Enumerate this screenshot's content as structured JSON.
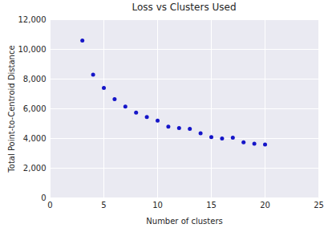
{
  "chart_data": {
    "type": "scatter",
    "title": "Loss vs Clusters Used",
    "x_label": "Number of clusters",
    "y_label": "Total Point-to-Centroid Distance",
    "x": [
      3,
      4,
      5,
      6,
      7,
      8,
      9,
      10,
      11,
      12,
      13,
      14,
      15,
      16,
      17,
      18,
      19,
      20
    ],
    "values": [
      10600,
      8300,
      7400,
      6650,
      6150,
      5750,
      5450,
      5200,
      4800,
      4700,
      4650,
      4350,
      4100,
      4000,
      4050,
      3750,
      3650,
      3600
    ],
    "color": "#1515c8",
    "xlim": [
      0,
      25
    ],
    "xticks": [
      0,
      5,
      10,
      15,
      20,
      25
    ],
    "ylim": [
      0,
      12000
    ],
    "yticks": [
      0,
      2000,
      4000,
      6000,
      8000,
      10000,
      12000
    ],
    "grid": true
  }
}
